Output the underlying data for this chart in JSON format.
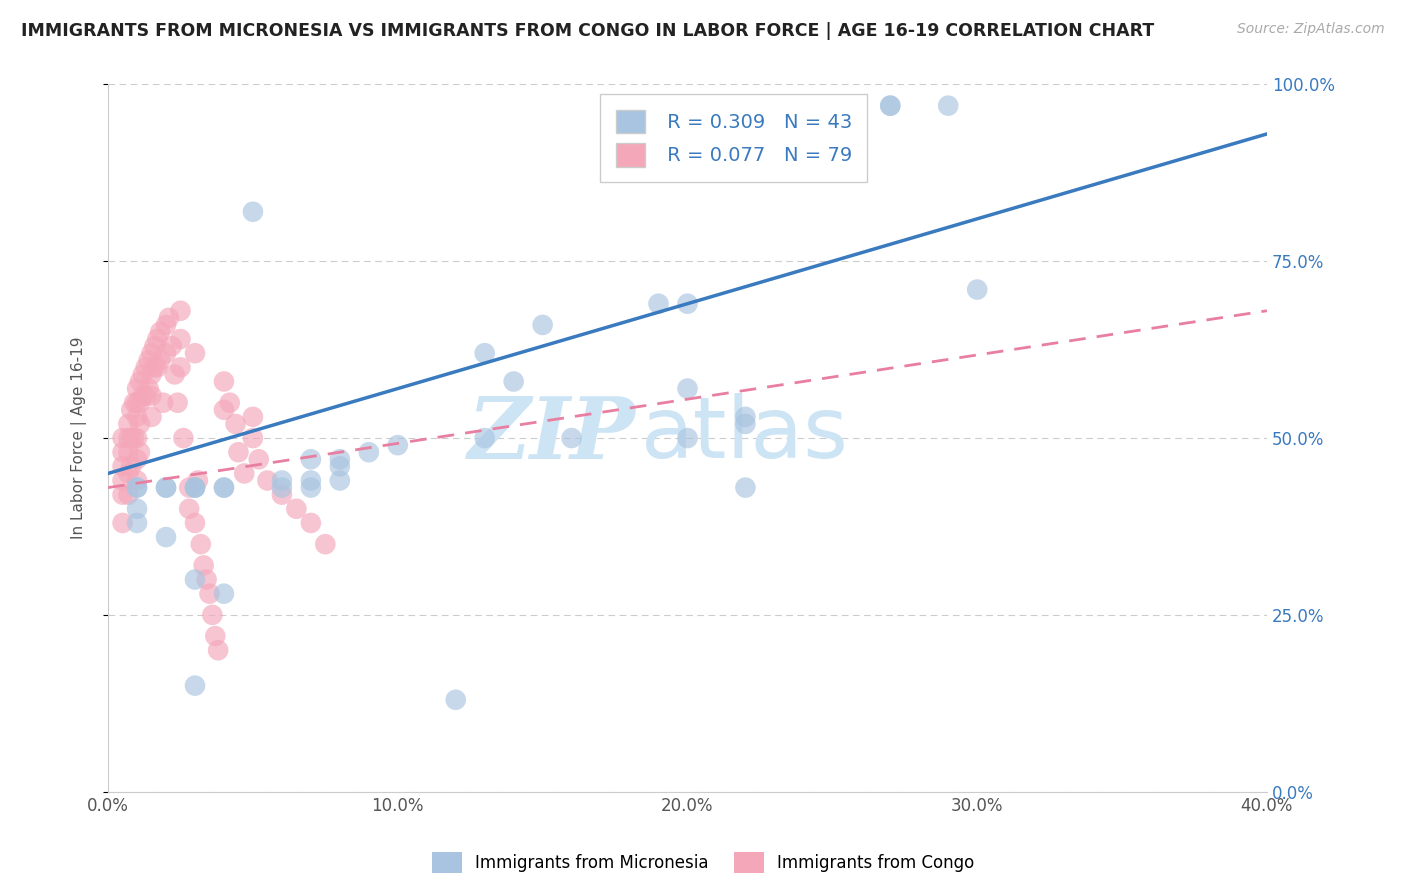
{
  "title": "IMMIGRANTS FROM MICRONESIA VS IMMIGRANTS FROM CONGO IN LABOR FORCE | AGE 16-19 CORRELATION CHART",
  "source": "Source: ZipAtlas.com",
  "ylabel": "In Labor Force | Age 16-19",
  "legend1_label": "Immigrants from Micronesia",
  "legend2_label": "Immigrants from Congo",
  "r1": 0.309,
  "n1": 43,
  "r2": 0.077,
  "n2": 79,
  "color1": "#a8c4e0",
  "color2": "#f4a7b9",
  "trendline1_color": "#3a7abf",
  "trendline2_color": "#e87fa0",
  "xlim": [
    0.0,
    0.4
  ],
  "ylim": [
    0.0,
    1.0
  ],
  "xtick_labels": [
    "0.0%",
    "10.0%",
    "20.0%",
    "30.0%",
    "40.0%"
  ],
  "xtick_vals": [
    0.0,
    0.1,
    0.2,
    0.3,
    0.4
  ],
  "ytick_labels_right": [
    "0.0%",
    "25.0%",
    "50.0%",
    "75.0%",
    "100.0%"
  ],
  "ytick_vals": [
    0.0,
    0.25,
    0.5,
    0.75,
    1.0
  ],
  "trendline1_x0": 0.0,
  "trendline1_y0": 0.45,
  "trendline1_x1": 0.4,
  "trendline1_y1": 0.93,
  "trendline2_x0": 0.0,
  "trendline2_y0": 0.43,
  "trendline2_x1": 0.4,
  "trendline2_y1": 0.68,
  "micronesia_x": [
    0.27,
    0.27,
    0.29,
    0.05,
    0.19,
    0.2,
    0.13,
    0.14,
    0.2,
    0.22,
    0.22,
    0.2,
    0.07,
    0.08,
    0.08,
    0.07,
    0.08,
    0.07,
    0.06,
    0.06,
    0.04,
    0.04,
    0.03,
    0.03,
    0.03,
    0.02,
    0.02,
    0.01,
    0.01,
    0.01,
    0.01,
    0.02,
    0.03,
    0.04,
    0.03,
    0.12,
    0.13,
    0.16,
    0.1,
    0.09,
    0.3,
    0.15,
    0.22
  ],
  "micronesia_y": [
    0.97,
    0.97,
    0.97,
    0.82,
    0.69,
    0.69,
    0.62,
    0.58,
    0.57,
    0.53,
    0.52,
    0.5,
    0.47,
    0.47,
    0.46,
    0.44,
    0.44,
    0.43,
    0.44,
    0.43,
    0.43,
    0.43,
    0.43,
    0.43,
    0.43,
    0.43,
    0.43,
    0.43,
    0.43,
    0.4,
    0.38,
    0.36,
    0.3,
    0.28,
    0.15,
    0.13,
    0.5,
    0.5,
    0.49,
    0.48,
    0.71,
    0.66,
    0.43
  ],
  "congo_x": [
    0.005,
    0.005,
    0.005,
    0.005,
    0.005,
    0.005,
    0.007,
    0.007,
    0.007,
    0.007,
    0.007,
    0.008,
    0.008,
    0.008,
    0.009,
    0.009,
    0.01,
    0.01,
    0.01,
    0.01,
    0.01,
    0.01,
    0.011,
    0.011,
    0.011,
    0.011,
    0.012,
    0.012,
    0.013,
    0.013,
    0.014,
    0.014,
    0.015,
    0.015,
    0.015,
    0.015,
    0.016,
    0.016,
    0.017,
    0.017,
    0.018,
    0.018,
    0.019,
    0.02,
    0.02,
    0.021,
    0.022,
    0.023,
    0.024,
    0.025,
    0.025,
    0.025,
    0.026,
    0.028,
    0.028,
    0.03,
    0.03,
    0.031,
    0.032,
    0.033,
    0.034,
    0.035,
    0.036,
    0.037,
    0.038,
    0.04,
    0.04,
    0.042,
    0.044,
    0.045,
    0.047,
    0.05,
    0.05,
    0.052,
    0.055,
    0.06,
    0.065,
    0.07,
    0.075
  ],
  "congo_y": [
    0.5,
    0.48,
    0.46,
    0.44,
    0.42,
    0.38,
    0.52,
    0.5,
    0.48,
    0.45,
    0.42,
    0.54,
    0.5,
    0.46,
    0.55,
    0.5,
    0.57,
    0.55,
    0.53,
    0.5,
    0.47,
    0.44,
    0.58,
    0.55,
    0.52,
    0.48,
    0.59,
    0.56,
    0.6,
    0.56,
    0.61,
    0.57,
    0.62,
    0.59,
    0.56,
    0.53,
    0.63,
    0.6,
    0.64,
    0.6,
    0.65,
    0.61,
    0.55,
    0.66,
    0.62,
    0.67,
    0.63,
    0.59,
    0.55,
    0.68,
    0.64,
    0.6,
    0.5,
    0.43,
    0.4,
    0.62,
    0.38,
    0.44,
    0.35,
    0.32,
    0.3,
    0.28,
    0.25,
    0.22,
    0.2,
    0.58,
    0.54,
    0.55,
    0.52,
    0.48,
    0.45,
    0.53,
    0.5,
    0.47,
    0.44,
    0.42,
    0.4,
    0.38,
    0.35
  ],
  "background_color": "#ffffff",
  "grid_color": "#cccccc",
  "watermark_zip": "ZIP",
  "watermark_atlas": "atlas",
  "watermark_color": "#cde4f5"
}
